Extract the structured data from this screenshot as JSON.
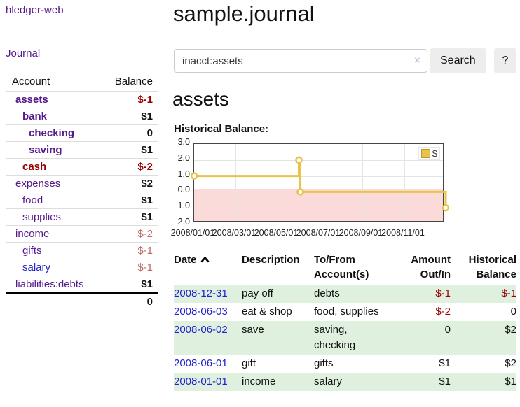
{
  "sidebar": {
    "brand": "hledger-web",
    "journal": "Journal",
    "table": {
      "account_header": "Account",
      "balance_header": "Balance",
      "rows": [
        {
          "name": "assets",
          "balance": "$-1"
        },
        {
          "name": "bank",
          "balance": "$1"
        },
        {
          "name": "checking",
          "balance": "0"
        },
        {
          "name": "saving",
          "balance": "$1"
        },
        {
          "name": "cash",
          "balance": "$-2"
        },
        {
          "name": "expenses",
          "balance": "$2"
        },
        {
          "name": "food",
          "balance": "$1"
        },
        {
          "name": "supplies",
          "balance": "$1"
        },
        {
          "name": "income",
          "balance": "$-2"
        },
        {
          "name": "gifts",
          "balance": "$-1"
        },
        {
          "name": "salary",
          "balance": "$-1"
        },
        {
          "name": "liabilities:debts",
          "balance": "$1"
        }
      ],
      "total": "0"
    }
  },
  "main": {
    "title": "sample.journal",
    "search": {
      "value": "inacct:assets",
      "clear": "×",
      "button": "Search",
      "help": "?"
    },
    "account_heading": "assets",
    "chart_label": "Historical Balance:"
  },
  "chart_data": {
    "type": "line",
    "title": "Historical Balance:",
    "x_range": [
      "2008-01-01",
      "2008-12-31"
    ],
    "ylim": [
      -2,
      3
    ],
    "y_ticks": [
      {
        "label": "3.0",
        "value": 3
      },
      {
        "label": "2.0",
        "value": 2
      },
      {
        "label": "1.0",
        "value": 1
      },
      {
        "label": "0.0",
        "value": 0
      },
      {
        "label": "-1.0",
        "value": -1
      },
      {
        "label": "-2.0",
        "value": -2
      }
    ],
    "x_ticks": [
      {
        "label": "2008/01/01",
        "date": "2008-01-01"
      },
      {
        "label": "2008/03/01",
        "date": "2008-03-01"
      },
      {
        "label": "2008/05/01",
        "date": "2008-05-01"
      },
      {
        "label": "2008/07/01",
        "date": "2008-07-01"
      },
      {
        "label": "2008/09/01",
        "date": "2008-09-01"
      },
      {
        "label": "2008/11/01",
        "date": "2008-11-01"
      }
    ],
    "legend": [
      {
        "label": "$",
        "color": "#e8c34a"
      }
    ],
    "series": [
      {
        "name": "$",
        "color": "#e8c34a",
        "step": true,
        "points": [
          {
            "date": "2008-01-01",
            "value": 1
          },
          {
            "date": "2008-06-01",
            "value": 2
          },
          {
            "date": "2008-06-03",
            "value": 0
          },
          {
            "date": "2008-12-31",
            "value": -1
          }
        ]
      }
    ],
    "negative_region_color": "#fbdada",
    "zero_line_color": "#a40000",
    "grid": true,
    "legend_position": "top-right"
  },
  "transactions": {
    "headers": {
      "date": "Date",
      "description": "Description",
      "accounts": "To/From Account(s)",
      "amount": "Amount Out/In",
      "balance": "Historical Balance"
    },
    "rows": [
      {
        "date": "2008-12-31",
        "description": "pay off",
        "accounts": "debts",
        "amount": "$-1",
        "balance": "$-1"
      },
      {
        "date": "2008-06-03",
        "description": "eat & shop",
        "accounts": "food, supplies",
        "amount": "$-2",
        "balance": "0"
      },
      {
        "date": "2008-06-02",
        "description": "save",
        "accounts": "saving, checking",
        "amount": "0",
        "balance": "$2"
      },
      {
        "date": "2008-06-01",
        "description": "gift",
        "accounts": "gifts",
        "amount": "$1",
        "balance": "$2"
      },
      {
        "date": "2008-01-01",
        "description": "income",
        "accounts": "salary",
        "amount": "$1",
        "balance": "$1"
      }
    ]
  }
}
